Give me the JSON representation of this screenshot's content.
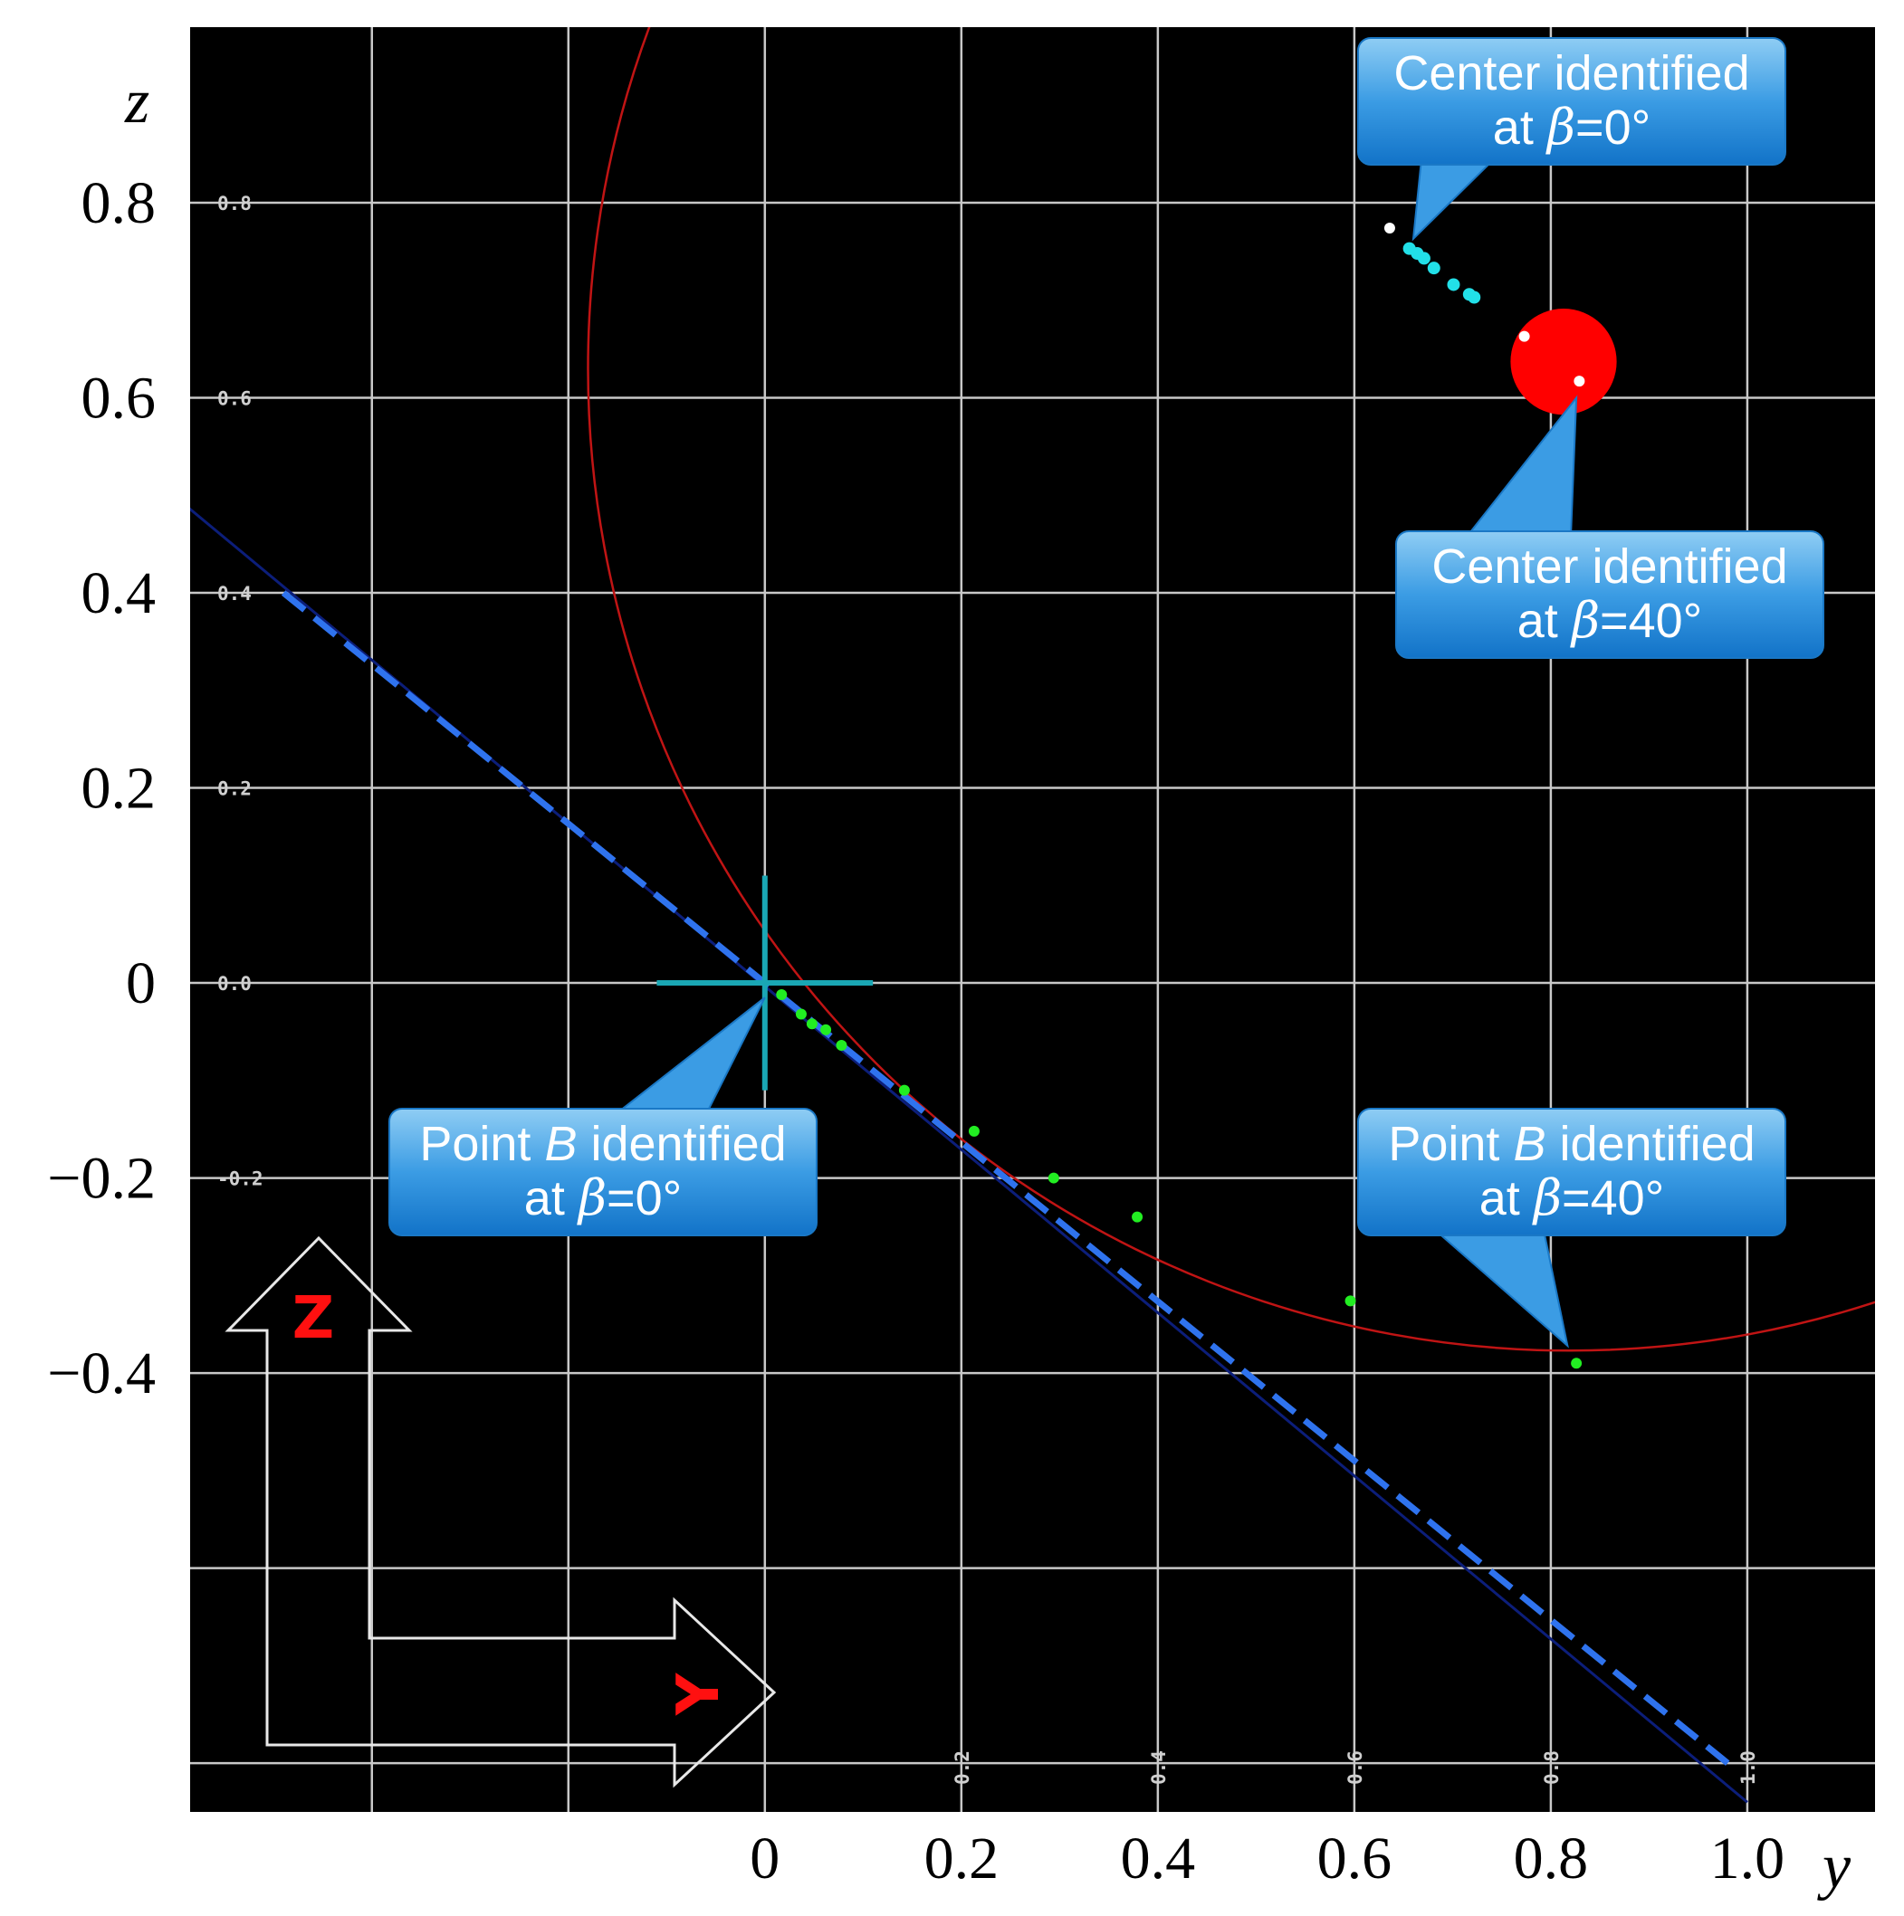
{
  "chart_data": {
    "type": "scatter",
    "xlabel": "y",
    "ylabel": "z",
    "xlim": [
      -0.585,
      1.13
    ],
    "ylim": [
      -0.85,
      0.98
    ],
    "grid": true,
    "x_ticks": [
      {
        "value": 0,
        "label": "0"
      },
      {
        "value": 0.2,
        "label": "0.2"
      },
      {
        "value": 0.4,
        "label": "0.4"
      },
      {
        "value": 0.6,
        "label": "0.6"
      },
      {
        "value": 0.8,
        "label": "0.8"
      },
      {
        "value": 1.0,
        "label": "1.0"
      }
    ],
    "y_ticks": [
      {
        "value": 0.8,
        "label": "0.8"
      },
      {
        "value": 0.6,
        "label": "0.6"
      },
      {
        "value": 0.4,
        "label": "0.4"
      },
      {
        "value": 0.2,
        "label": "0.2"
      },
      {
        "value": 0,
        "label": "0"
      },
      {
        "value": -0.2,
        "label": "−0.2"
      },
      {
        "value": -0.4,
        "label": "−0.4"
      }
    ],
    "inner_x_tick_labels": [
      {
        "value": 0.2,
        "label": "0.2"
      },
      {
        "value": 0.4,
        "label": "0.4"
      },
      {
        "value": 0.6,
        "label": "0.6"
      },
      {
        "value": 0.8,
        "label": "0.8"
      },
      {
        "value": 1.0,
        "label": "1.0"
      }
    ],
    "inner_y_tick_labels": [
      {
        "value": 0.8,
        "label": "0.8"
      },
      {
        "value": 0.6,
        "label": "0.6"
      },
      {
        "value": 0.4,
        "label": "0.4"
      },
      {
        "value": 0.2,
        "label": "0.2"
      },
      {
        "value": 0.0,
        "label": "0.0"
      },
      {
        "value": -0.2,
        "label": "-0.2"
      }
    ],
    "extra_gridlines": {
      "x": [
        -0.4,
        -0.2
      ],
      "y": [
        -0.6,
        -0.8
      ]
    },
    "circle": {
      "center": [
        0.82,
        0.63
      ],
      "radius": 1.0,
      "color": "#c01414"
    },
    "tangent_line": {
      "from": [
        -0.59,
        0.49
      ],
      "to": [
        1.0,
        -0.84
      ],
      "color": "#0c1e7a"
    },
    "dashed_line": {
      "from": [
        -0.49,
        0.4
      ],
      "to": [
        0.98,
        -0.8
      ],
      "color": "#2f73ee"
    },
    "crosshair": {
      "center": [
        0,
        0
      ],
      "half_width": 0.11,
      "up": 0.11,
      "down": 0.11,
      "color": "#1aa7b4"
    },
    "series": [
      {
        "name": "",
        "color": "#22ee22",
        "points": [
          [
            0.017,
            -0.012
          ],
          [
            0.037,
            -0.032
          ],
          [
            0.048,
            -0.042
          ],
          [
            0.062,
            -0.048
          ],
          [
            0.078,
            -0.064
          ],
          [
            0.142,
            -0.11
          ],
          [
            0.213,
            -0.152
          ],
          [
            0.294,
            -0.2
          ],
          [
            0.379,
            -0.24
          ],
          [
            0.596,
            -0.326
          ],
          [
            0.826,
            -0.39
          ]
        ]
      },
      {
        "name": "",
        "color": "#22e0e8",
        "points": [
          [
            0.656,
            0.753
          ],
          [
            0.664,
            0.748
          ],
          [
            0.671,
            0.743
          ],
          [
            0.681,
            0.733
          ],
          [
            0.701,
            0.716
          ],
          [
            0.717,
            0.706
          ],
          [
            0.722,
            0.703
          ]
        ]
      }
    ],
    "white_points": [
      [
        0.636,
        0.774
      ],
      [
        0.773,
        0.663
      ],
      [
        0.829,
        0.617
      ]
    ],
    "red_disc": {
      "center": [
        0.813,
        0.637
      ],
      "radius": 0.054,
      "color": "#ff0000"
    },
    "callouts": [
      {
        "line1": "Center identified",
        "line2_prefix": "at ",
        "line2_symbol": "β",
        "line2_suffix": "=0°",
        "target": [
          0.66,
          0.763
        ]
      },
      {
        "line1": "Center identified",
        "line2_prefix": "at ",
        "line2_symbol": "β",
        "line2_suffix": "=40°",
        "target": [
          0.826,
          0.6
        ]
      },
      {
        "line1_prefix": "Point ",
        "line1_symbol": "B",
        "line1_suffix": " identified",
        "line2_prefix": "at ",
        "line2_symbol": "β",
        "line2_suffix": "=0°",
        "target": [
          0.0,
          -0.015
        ]
      },
      {
        "line1_prefix": "Point ",
        "line1_symbol": "B",
        "line1_suffix": " identified",
        "line2_prefix": "at ",
        "line2_symbol": "β",
        "line2_suffix": "=40°",
        "target": [
          0.817,
          -0.372
        ]
      }
    ],
    "frame_axes": {
      "z_label": "Z",
      "y_label": "Y"
    }
  }
}
